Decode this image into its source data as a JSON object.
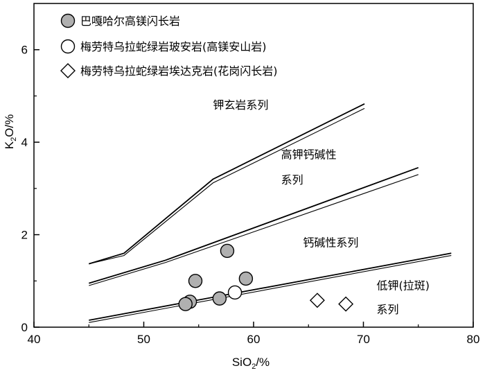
{
  "chart_data": {
    "type": "scatter",
    "title": "",
    "xlabel": "SiO2/%",
    "ylabel": "K2O/%",
    "xlabel_parts": {
      "base": "SiO",
      "sub": "2",
      "unit": "/%"
    },
    "ylabel_parts": {
      "base": "K",
      "sub": "2",
      "mid": "O",
      "unit": "/%"
    },
    "xlim": [
      40,
      80
    ],
    "ylim": [
      0,
      7
    ],
    "xticks": [
      40,
      50,
      60,
      70,
      80
    ],
    "yticks": [
      0,
      2,
      4,
      6
    ],
    "grid": false,
    "legend_position": "top-left",
    "series": [
      {
        "name": "巴嘎哈尔高镁闪长岩",
        "marker": "circle-filled",
        "color": "#b0b0b0",
        "points": [
          [
            54.7,
            1.0
          ],
          [
            57.6,
            1.65
          ],
          [
            59.3,
            1.05
          ],
          [
            54.2,
            0.55
          ],
          [
            53.8,
            0.5
          ],
          [
            56.9,
            0.62
          ]
        ]
      },
      {
        "name": "梅劳特乌拉蛇绿岩玻安岩(高镁安山岩)",
        "marker": "circle-open",
        "color": "#ffffff",
        "points": [
          [
            58.3,
            0.75
          ]
        ]
      },
      {
        "name": "梅劳特乌拉蛇绿岩埃达克岩(花岗闪长岩)",
        "marker": "diamond-open",
        "color": "#ffffff",
        "points": [
          [
            65.8,
            0.58
          ],
          [
            68.4,
            0.5
          ]
        ]
      }
    ],
    "boundaries": [
      {
        "lines": [
          [
            [
              45,
              1.37
            ],
            [
              48.2,
              1.6
            ],
            [
              56.3,
              3.2
            ],
            [
              70.1,
              4.83
            ]
          ],
          [
            [
              45,
              1.37
            ],
            [
              48.2,
              1.55
            ],
            [
              56.3,
              3.12
            ],
            [
              70.1,
              4.73
            ]
          ]
        ]
      },
      {
        "lines": [
          [
            [
              45,
              0.95
            ],
            [
              52,
              1.45
            ],
            [
              75,
              3.45
            ]
          ],
          [
            [
              45,
              0.9
            ],
            [
              52,
              1.4
            ],
            [
              75,
              3.3
            ]
          ]
        ]
      },
      {
        "lines": [
          [
            [
              45,
              0.15
            ],
            [
              78,
              1.6
            ]
          ],
          [
            [
              45,
              0.1
            ],
            [
              78,
              1.55
            ]
          ]
        ]
      }
    ],
    "annotations": [
      {
        "text": "钾玄岩系列",
        "x": 56.3,
        "y": 4.72
      },
      {
        "text": "高钾钙碱性",
        "x": 62.5,
        "y": 3.65
      },
      {
        "text": "系列",
        "x": 62.5,
        "y": 3.1
      },
      {
        "text": "钙碱性系列",
        "x": 64.5,
        "y": 1.75
      },
      {
        "text": "低钾(拉斑)",
        "x": 71.2,
        "y": 0.82
      },
      {
        "text": "系列",
        "x": 71.2,
        "y": 0.3
      }
    ]
  }
}
